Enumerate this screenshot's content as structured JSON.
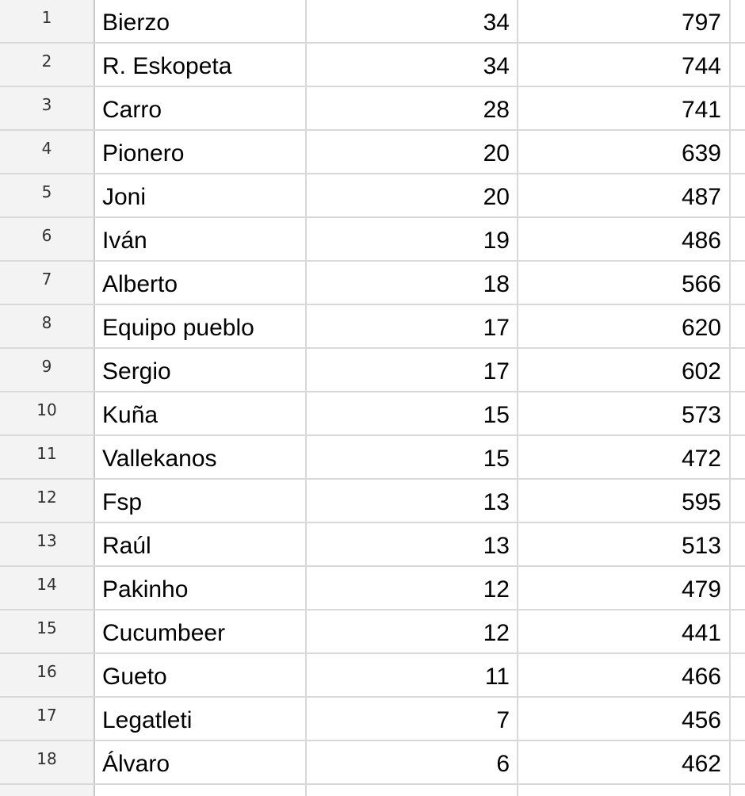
{
  "rows": [
    {
      "num": "1",
      "name": "Bierzo",
      "c": "34",
      "d": "797"
    },
    {
      "num": "2",
      "name": "R. Eskopeta",
      "c": "34",
      "d": "744"
    },
    {
      "num": "3",
      "name": "Carro",
      "c": "28",
      "d": "741"
    },
    {
      "num": "4",
      "name": "Pionero",
      "c": "20",
      "d": "639"
    },
    {
      "num": "5",
      "name": "Joni",
      "c": "20",
      "d": "487"
    },
    {
      "num": "6",
      "name": "Iván",
      "c": "19",
      "d": "486"
    },
    {
      "num": "7",
      "name": "Alberto",
      "c": "18",
      "d": "566"
    },
    {
      "num": "8",
      "name": "Equipo pueblo",
      "c": "17",
      "d": "620"
    },
    {
      "num": "9",
      "name": "Sergio",
      "c": "17",
      "d": "602"
    },
    {
      "num": "10",
      "name": "Kuña",
      "c": "15",
      "d": "573"
    },
    {
      "num": "11",
      "name": "Vallekanos",
      "c": "15",
      "d": "472"
    },
    {
      "num": "12",
      "name": "Fsp",
      "c": "13",
      "d": "595"
    },
    {
      "num": "13",
      "name": "Raúl",
      "c": "13",
      "d": "513"
    },
    {
      "num": "14",
      "name": "Pakinho",
      "c": "12",
      "d": "479"
    },
    {
      "num": "15",
      "name": "Cucumbeer",
      "c": "12",
      "d": "441"
    },
    {
      "num": "16",
      "name": "Gueto",
      "c": "11",
      "d": "466"
    },
    {
      "num": "17",
      "name": "Legatleti",
      "c": "7",
      "d": "456"
    },
    {
      "num": "18",
      "name": "Álvaro",
      "c": "6",
      "d": "462"
    }
  ]
}
